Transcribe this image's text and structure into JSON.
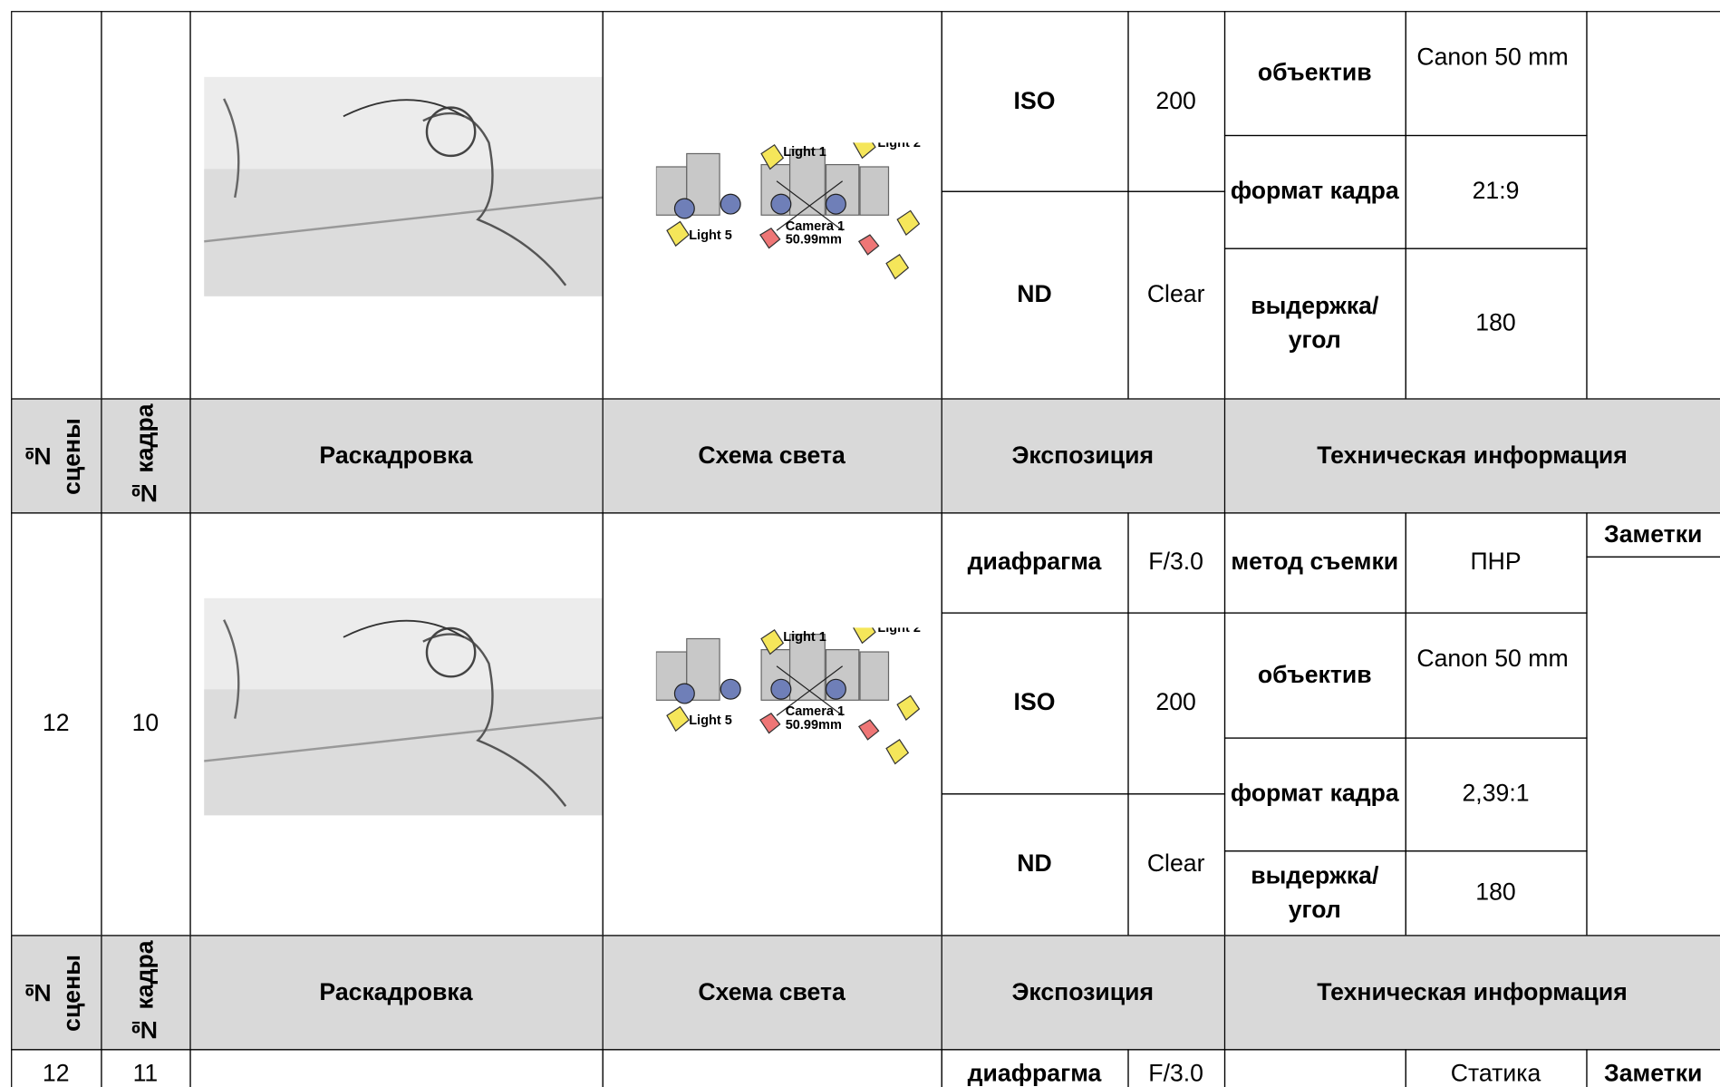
{
  "header": {
    "scene": "№ сцены",
    "frame": "№ кадра",
    "storyboard": "Раскадровка",
    "light": "Схема света",
    "exposure": "Экспозиция",
    "tech": "Техническая информация"
  },
  "light_scheme": {
    "labels": [
      "Light 1",
      "Light 2",
      "Light 5",
      "Camera 1",
      "50.99mm"
    ]
  },
  "rows": [
    {
      "exposure": [
        {
          "label": "ISO",
          "value": "200"
        },
        {
          "label": "ND",
          "value": "Clear"
        }
      ],
      "tech": [
        {
          "label": "объектив",
          "value": "Canon 50 mm"
        },
        {
          "label": "формат кадра",
          "value": "21:9"
        },
        {
          "label": "выдержка/ угол",
          "value": "180"
        }
      ]
    },
    {
      "scene": "12",
      "frame": "10",
      "exposure": [
        {
          "label": "диафрагма",
          "value": "F/3.0"
        },
        {
          "label": "ISO",
          "value": "200"
        },
        {
          "label": "ND",
          "value": "Clear"
        }
      ],
      "tech": [
        {
          "label": "метод съемки",
          "value": "ПНР"
        },
        {
          "label": "объектив",
          "value": "Canon 50 mm"
        },
        {
          "label": "формат кадра",
          "value": "2,39:1"
        },
        {
          "label": "выдержка/ угол",
          "value": "180"
        }
      ],
      "notes": "Заметки"
    },
    {
      "scene": "12",
      "frame": "11",
      "exposure": [
        {
          "label": "диафрагма",
          "value": "F/3.0"
        }
      ],
      "tech": [
        {
          "value": "Статика"
        }
      ],
      "notes": "Заметки"
    }
  ]
}
